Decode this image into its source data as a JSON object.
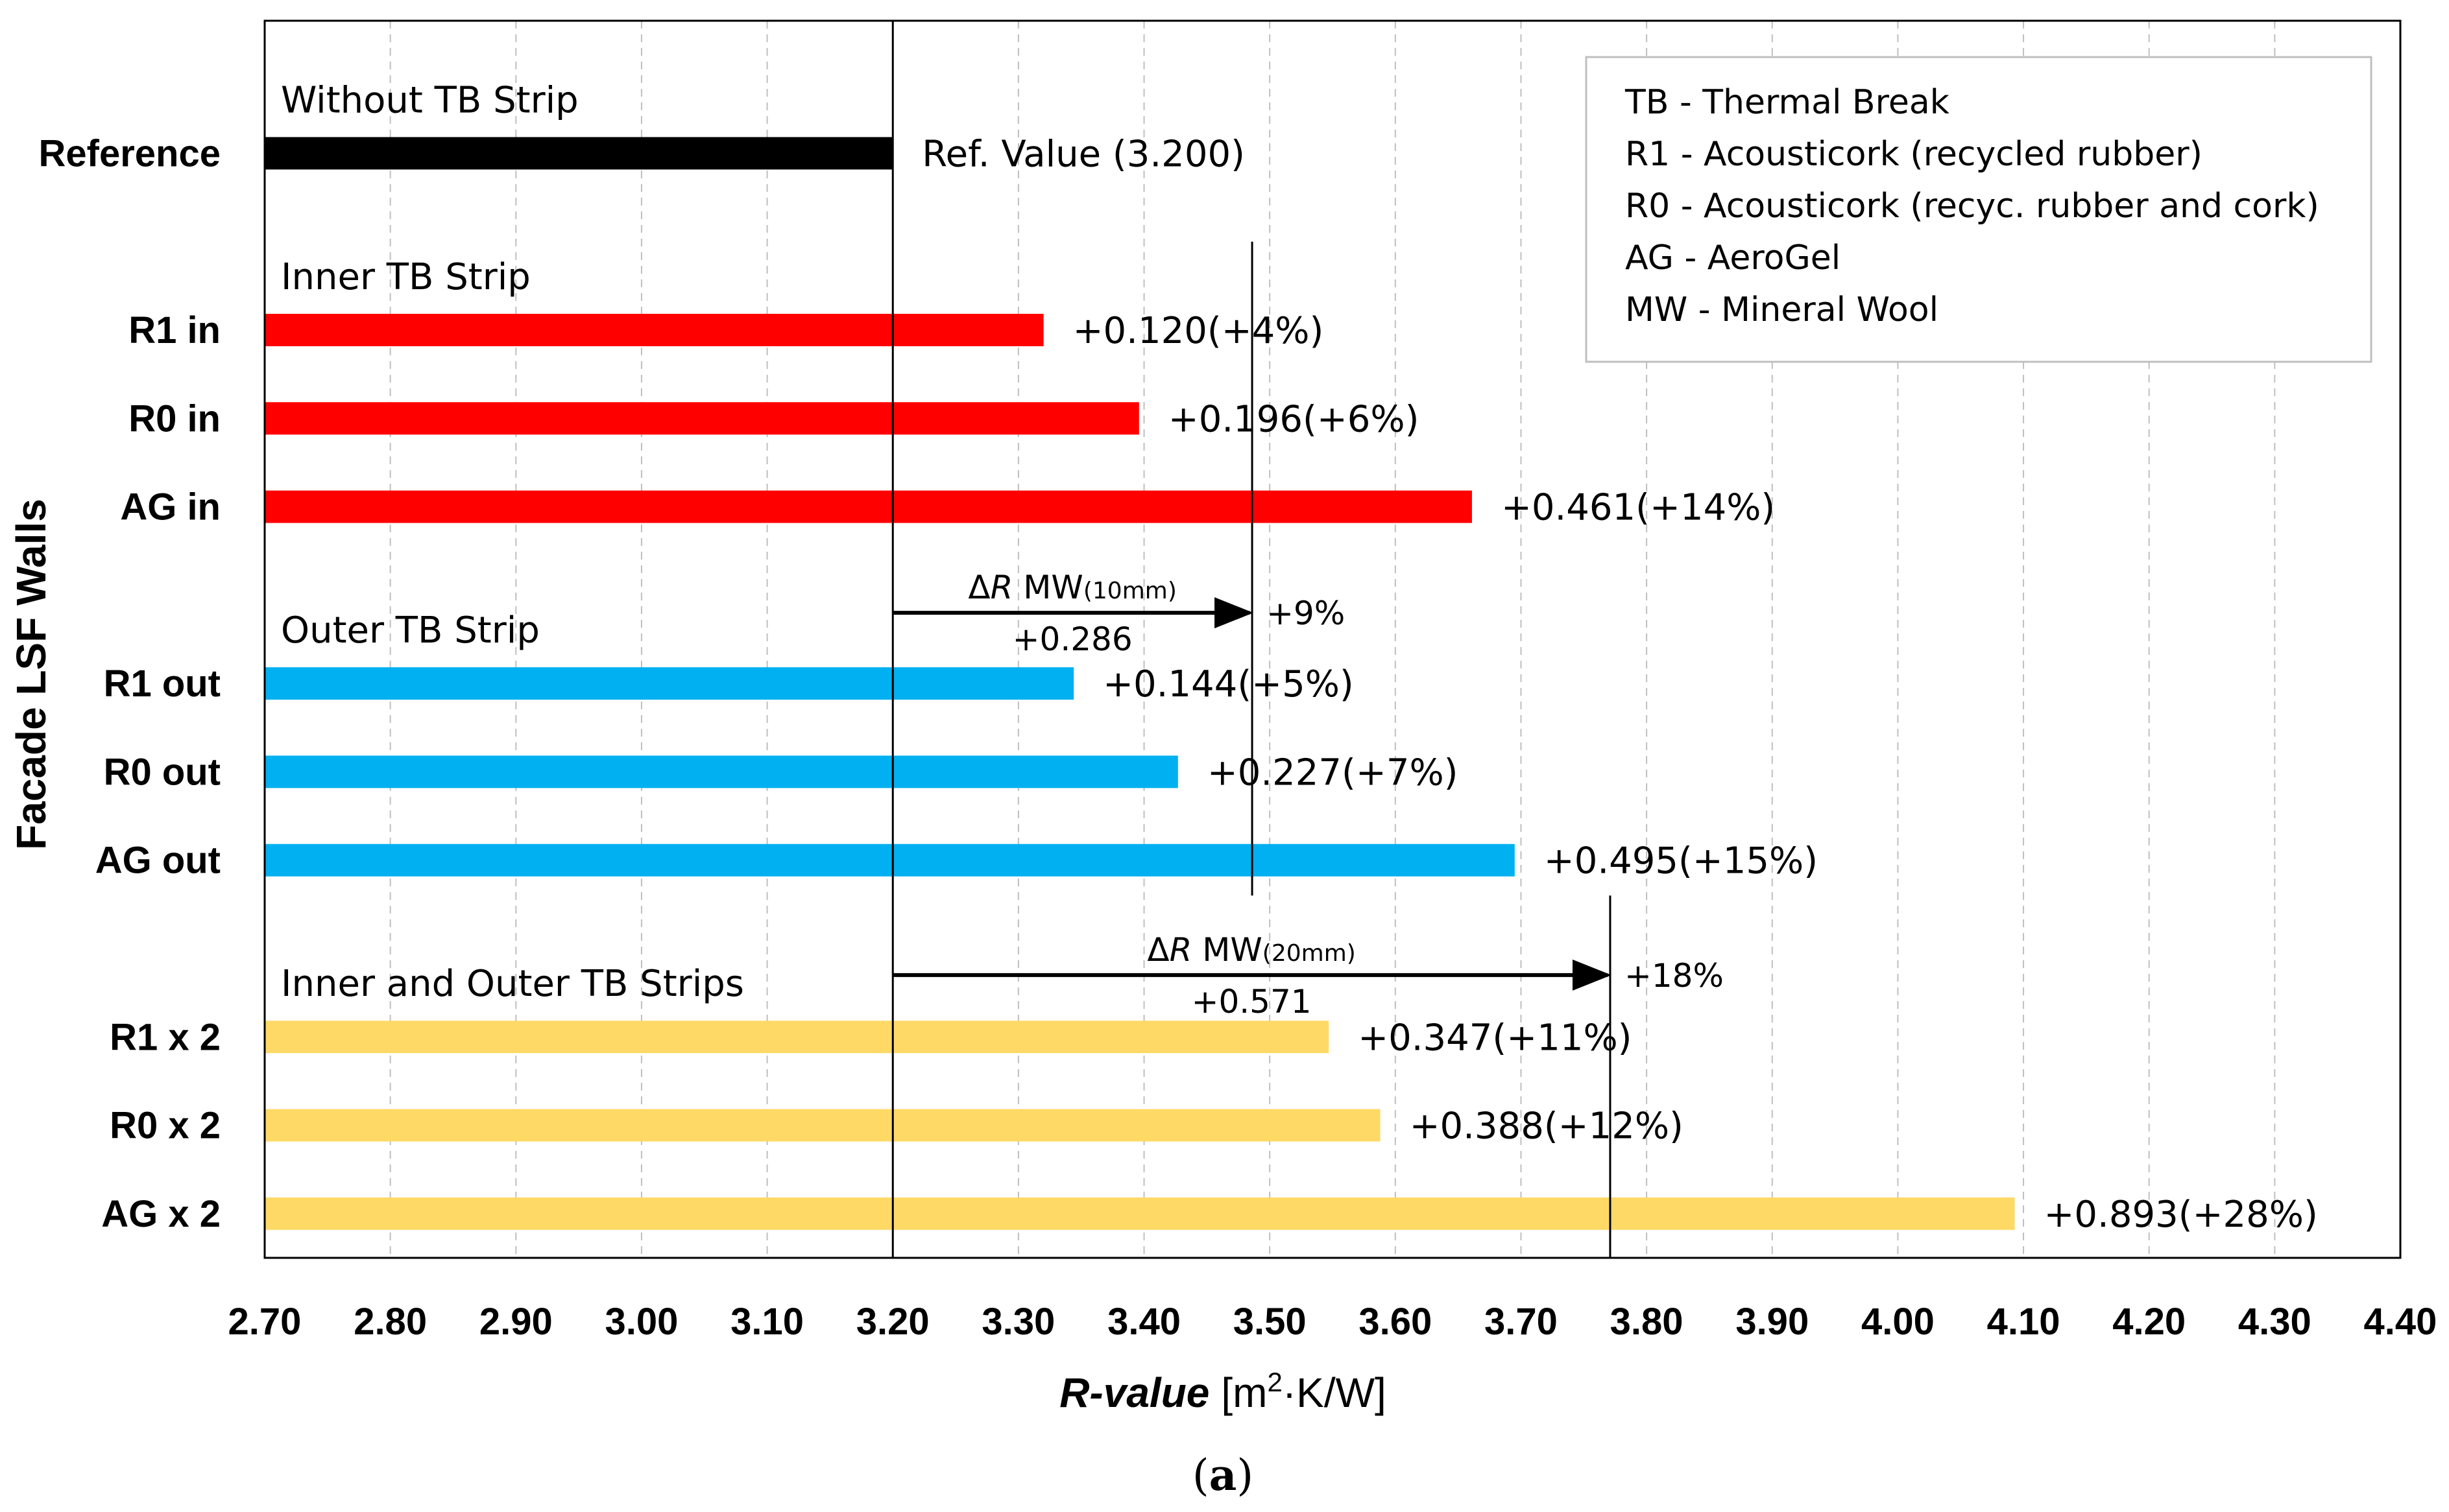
{
  "chart_data": {
    "type": "bar",
    "orientation": "horizontal",
    "ylabel": "Facade  LSF  Walls",
    "xlabel_italic": "R",
    "xlabel_rest": "-value",
    "xlabel_units_pre": "[m",
    "xlabel_units_sup": "2",
    "xlabel_units_post": "·K/W]",
    "xlim": [
      2.7,
      4.4
    ],
    "xtick_step": 0.1,
    "xtick_labels": [
      "2.70",
      "2.80",
      "2.90",
      "3.00",
      "3.10",
      "3.20",
      "3.30",
      "3.40",
      "3.50",
      "3.60",
      "3.70",
      "3.80",
      "3.90",
      "4.00",
      "4.10",
      "4.20",
      "4.30",
      "4.40"
    ],
    "grid": "vertical dashed",
    "categories": [
      {
        "label": "Reference",
        "value": 3.2,
        "annotation": "Ref. Value (3.200)",
        "color": "#000000",
        "slot": 1.5
      },
      {
        "label": "R1 in",
        "value": 3.32,
        "annotation": "+0.120(+4%)",
        "color": "#ff0000",
        "slot": 3.5
      },
      {
        "label": "R0 in",
        "value": 3.396,
        "annotation": "+0.196(+6%)",
        "color": "#ff0000",
        "slot": 4.5
      },
      {
        "label": "AG in",
        "value": 3.661,
        "annotation": "+0.461(+14%)",
        "color": "#ff0000",
        "slot": 5.5
      },
      {
        "label": "R1 out",
        "value": 3.344,
        "annotation": "+0.144(+5%)",
        "color": "#00b0f0",
        "slot": 7.5
      },
      {
        "label": "R0 out",
        "value": 3.427,
        "annotation": "+0.227(+7%)",
        "color": "#00b0f0",
        "slot": 8.5
      },
      {
        "label": "AG out",
        "value": 3.695,
        "annotation": "+0.495(+15%)",
        "color": "#00b0f0",
        "slot": 9.5
      },
      {
        "label": "R1 x 2",
        "value": 3.547,
        "annotation": "+0.347(+11%)",
        "color": "#ffd966",
        "slot": 11.5
      },
      {
        "label": "R0 x 2",
        "value": 3.588,
        "annotation": "+0.388(+12%)",
        "color": "#ffd966",
        "slot": 12.5
      },
      {
        "label": "AG x 2",
        "value": 4.093,
        "annotation": "+0.893(+28%)",
        "color": "#ffd966",
        "slot": 13.5
      }
    ],
    "slots_total": 14,
    "reference_value": 3.2,
    "group_labels": [
      {
        "text": "Without TB Strip",
        "slot": 1.0
      },
      {
        "text": "Inner TB Strip",
        "slot": 3.0
      },
      {
        "text": "Outer TB Strip",
        "slot": 7.0
      },
      {
        "text": "Inner and Outer TB Strips",
        "slot": 11.0
      }
    ],
    "mw_annotations": [
      {
        "delta_symbol": "Δ",
        "r_symbol": "R",
        "material": " MW",
        "thickness": "(10mm)",
        "value_text": "+0.286",
        "percent_text": "+9%",
        "x_start": 3.2,
        "x_end": 3.486,
        "slot": 6.7,
        "vline_slots": [
          2.5,
          9.9
        ]
      },
      {
        "delta_symbol": "Δ",
        "r_symbol": "R",
        "material": " MW",
        "thickness": "(20mm)",
        "value_text": "+0.571",
        "percent_text": "+18%",
        "x_start": 3.2,
        "x_end": 3.771,
        "slot": 10.8,
        "vline_slots": [
          9.9,
          14.0
        ]
      }
    ],
    "legend": {
      "position": "top-right",
      "entries": [
        "TB - Thermal Break",
        "R1 - Acousticork (recycled rubber)",
        "R0 - Acousticork (recyc. rubber and cork)",
        "AG - AeroGel",
        "MW - Mineral Wool"
      ]
    }
  },
  "caption": {
    "paren_open": "(",
    "letter": "a",
    "paren_close": ")"
  }
}
